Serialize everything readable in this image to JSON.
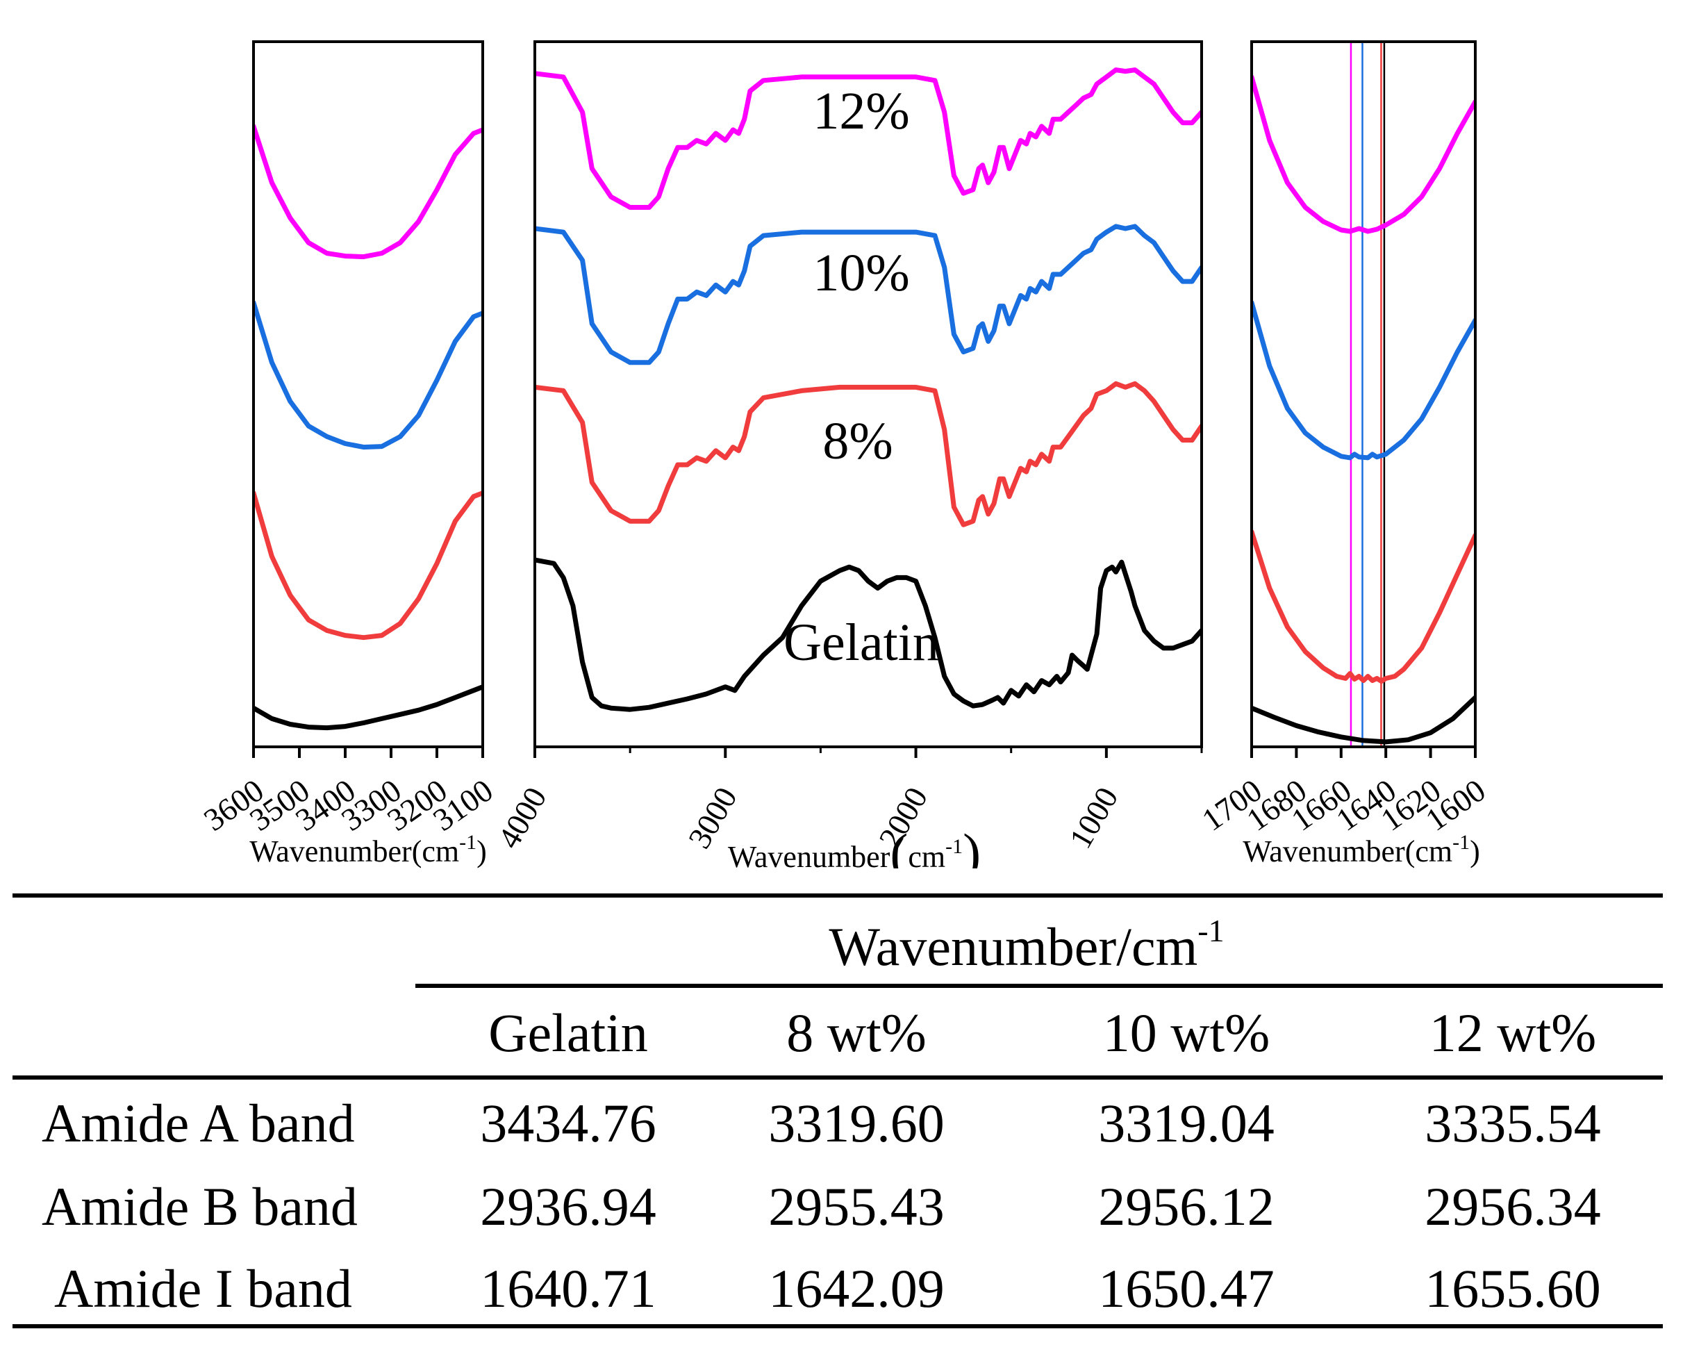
{
  "chart_data": [
    {
      "type": "line",
      "panel": "left",
      "xlabel": "Wavenumber(cm",
      "xlabel_sup": "-1",
      "xlabel_close": ")",
      "xlim": [
        3600,
        3100
      ],
      "x_ticks": [
        3600,
        3500,
        3400,
        3300,
        3200,
        3100
      ],
      "x_tick_labels": [
        "3600",
        "3500",
        "3400",
        "3300",
        "3200",
        "3100"
      ],
      "y_axis_visible": false,
      "series": [
        {
          "name": "12%",
          "color": "#ff00ff",
          "x": [
            3600,
            3560,
            3520,
            3480,
            3440,
            3400,
            3360,
            3320,
            3280,
            3240,
            3200,
            3160,
            3120,
            3100
          ],
          "y": [
            0.88,
            0.8,
            0.75,
            0.715,
            0.7,
            0.696,
            0.695,
            0.7,
            0.715,
            0.745,
            0.79,
            0.84,
            0.87,
            0.875
          ]
        },
        {
          "name": "10%",
          "color": "#1a6fe0",
          "x": [
            3600,
            3560,
            3520,
            3480,
            3440,
            3400,
            3360,
            3320,
            3280,
            3240,
            3200,
            3160,
            3120,
            3100
          ],
          "y": [
            0.63,
            0.545,
            0.49,
            0.455,
            0.44,
            0.43,
            0.425,
            0.426,
            0.44,
            0.47,
            0.52,
            0.575,
            0.61,
            0.615
          ]
        },
        {
          "name": "8%",
          "color": "#f03c3c",
          "x": [
            3600,
            3560,
            3520,
            3480,
            3440,
            3400,
            3360,
            3320,
            3280,
            3240,
            3200,
            3160,
            3120,
            3100
          ],
          "y": [
            0.36,
            0.27,
            0.215,
            0.18,
            0.165,
            0.158,
            0.155,
            0.158,
            0.175,
            0.21,
            0.26,
            0.32,
            0.355,
            0.36
          ]
        },
        {
          "name": "Gelatin",
          "color": "#000000",
          "x": [
            3600,
            3560,
            3520,
            3480,
            3440,
            3400,
            3360,
            3320,
            3280,
            3240,
            3200,
            3160,
            3120,
            3100
          ],
          "y": [
            0.055,
            0.04,
            0.032,
            0.028,
            0.027,
            0.029,
            0.034,
            0.04,
            0.046,
            0.052,
            0.06,
            0.07,
            0.08,
            0.085
          ]
        }
      ]
    },
    {
      "type": "line",
      "panel": "middle",
      "xlabel": "Wavenumber",
      "xlabel_unit": "cm",
      "xlabel_sup": "-1",
      "xlim": [
        4000,
        500
      ],
      "x_ticks": [
        4000,
        3000,
        2000,
        1000
      ],
      "x_tick_labels": [
        "4000",
        "3000",
        "2000",
        "1000"
      ],
      "y_axis_visible": false,
      "series": [
        {
          "name": "12%",
          "label": "12%",
          "color": "#ff00ff",
          "x": [
            4000,
            3850,
            3750,
            3700,
            3600,
            3500,
            3400,
            3350,
            3300,
            3250,
            3200,
            3150,
            3100,
            3050,
            3000,
            2960,
            2930,
            2900,
            2870,
            2800,
            2600,
            2400,
            2200,
            2000,
            1900,
            1850,
            1800,
            1750,
            1700,
            1670,
            1650,
            1620,
            1590,
            1560,
            1540,
            1510,
            1480,
            1450,
            1420,
            1400,
            1370,
            1340,
            1300,
            1280,
            1240,
            1200,
            1160,
            1120,
            1080,
            1050,
            1000,
            950,
            900,
            850,
            800,
            750,
            700,
            650,
            600,
            550,
            500
          ],
          "y": [
            0.955,
            0.95,
            0.9,
            0.82,
            0.78,
            0.765,
            0.765,
            0.78,
            0.82,
            0.85,
            0.85,
            0.86,
            0.855,
            0.87,
            0.86,
            0.875,
            0.87,
            0.89,
            0.93,
            0.945,
            0.95,
            0.95,
            0.95,
            0.95,
            0.945,
            0.9,
            0.81,
            0.785,
            0.79,
            0.82,
            0.825,
            0.8,
            0.815,
            0.85,
            0.85,
            0.82,
            0.84,
            0.86,
            0.855,
            0.87,
            0.865,
            0.88,
            0.87,
            0.89,
            0.89,
            0.9,
            0.91,
            0.92,
            0.925,
            0.94,
            0.95,
            0.96,
            0.958,
            0.96,
            0.95,
            0.94,
            0.92,
            0.9,
            0.885,
            0.885,
            0.9
          ]
        },
        {
          "name": "10%",
          "label": "10%",
          "color": "#1a6fe0",
          "x": [
            4000,
            3850,
            3750,
            3700,
            3600,
            3500,
            3400,
            3350,
            3300,
            3250,
            3200,
            3150,
            3100,
            3050,
            3000,
            2960,
            2930,
            2900,
            2870,
            2800,
            2600,
            2400,
            2200,
            2000,
            1900,
            1850,
            1800,
            1750,
            1700,
            1670,
            1650,
            1620,
            1590,
            1560,
            1540,
            1510,
            1480,
            1450,
            1420,
            1400,
            1370,
            1340,
            1300,
            1280,
            1240,
            1200,
            1160,
            1120,
            1080,
            1050,
            1000,
            950,
            900,
            850,
            800,
            750,
            700,
            650,
            600,
            550,
            500
          ],
          "y": [
            0.735,
            0.73,
            0.69,
            0.6,
            0.56,
            0.545,
            0.545,
            0.56,
            0.6,
            0.635,
            0.635,
            0.645,
            0.64,
            0.655,
            0.645,
            0.66,
            0.655,
            0.675,
            0.71,
            0.725,
            0.73,
            0.73,
            0.73,
            0.73,
            0.725,
            0.68,
            0.585,
            0.56,
            0.565,
            0.595,
            0.6,
            0.575,
            0.59,
            0.625,
            0.625,
            0.6,
            0.62,
            0.64,
            0.635,
            0.65,
            0.645,
            0.66,
            0.65,
            0.67,
            0.67,
            0.68,
            0.69,
            0.7,
            0.705,
            0.72,
            0.73,
            0.738,
            0.735,
            0.738,
            0.725,
            0.715,
            0.695,
            0.675,
            0.66,
            0.66,
            0.68
          ]
        },
        {
          "name": "8%",
          "label": "8%",
          "color": "#f03c3c",
          "x": [
            4000,
            3850,
            3750,
            3700,
            3600,
            3500,
            3400,
            3350,
            3300,
            3250,
            3200,
            3150,
            3100,
            3050,
            3000,
            2960,
            2930,
            2900,
            2870,
            2800,
            2600,
            2400,
            2200,
            2000,
            1900,
            1850,
            1800,
            1750,
            1700,
            1670,
            1650,
            1620,
            1590,
            1560,
            1540,
            1510,
            1480,
            1450,
            1420,
            1400,
            1370,
            1340,
            1300,
            1280,
            1240,
            1200,
            1160,
            1120,
            1080,
            1050,
            1000,
            950,
            900,
            850,
            800,
            750,
            700,
            650,
            600,
            550,
            500
          ],
          "y": [
            0.51,
            0.505,
            0.46,
            0.375,
            0.335,
            0.32,
            0.32,
            0.335,
            0.37,
            0.4,
            0.4,
            0.41,
            0.405,
            0.42,
            0.41,
            0.425,
            0.42,
            0.44,
            0.475,
            0.495,
            0.505,
            0.51,
            0.51,
            0.51,
            0.505,
            0.45,
            0.34,
            0.315,
            0.32,
            0.35,
            0.355,
            0.33,
            0.345,
            0.38,
            0.38,
            0.355,
            0.375,
            0.395,
            0.39,
            0.405,
            0.4,
            0.415,
            0.405,
            0.425,
            0.425,
            0.44,
            0.455,
            0.47,
            0.48,
            0.5,
            0.505,
            0.515,
            0.51,
            0.515,
            0.505,
            0.49,
            0.47,
            0.45,
            0.435,
            0.435,
            0.455
          ]
        },
        {
          "name": "Gelatin",
          "label": "Gelatin",
          "color": "#000000",
          "x": [
            4000,
            3900,
            3850,
            3800,
            3750,
            3700,
            3650,
            3600,
            3500,
            3400,
            3300,
            3200,
            3100,
            3000,
            2950,
            2900,
            2800,
            2700,
            2600,
            2500,
            2400,
            2350,
            2300,
            2250,
            2200,
            2150,
            2100,
            2050,
            2000,
            1950,
            1900,
            1850,
            1800,
            1750,
            1700,
            1650,
            1600,
            1570,
            1540,
            1500,
            1460,
            1420,
            1380,
            1340,
            1300,
            1260,
            1240,
            1200,
            1180,
            1150,
            1120,
            1100,
            1080,
            1050,
            1030,
            1000,
            970,
            950,
            920,
            900,
            870,
            850,
            800,
            750,
            700,
            650,
            600,
            550,
            500
          ],
          "y": [
            0.265,
            0.26,
            0.24,
            0.2,
            0.12,
            0.07,
            0.058,
            0.055,
            0.053,
            0.056,
            0.062,
            0.068,
            0.075,
            0.085,
            0.08,
            0.1,
            0.13,
            0.155,
            0.2,
            0.235,
            0.25,
            0.255,
            0.25,
            0.235,
            0.225,
            0.235,
            0.24,
            0.24,
            0.235,
            0.2,
            0.155,
            0.1,
            0.075,
            0.065,
            0.058,
            0.06,
            0.066,
            0.07,
            0.062,
            0.08,
            0.072,
            0.088,
            0.078,
            0.094,
            0.088,
            0.1,
            0.092,
            0.105,
            0.13,
            0.122,
            0.115,
            0.11,
            0.13,
            0.16,
            0.225,
            0.25,
            0.255,
            0.248,
            0.262,
            0.245,
            0.22,
            0.2,
            0.165,
            0.15,
            0.14,
            0.14,
            0.145,
            0.15,
            0.165
          ]
        }
      ]
    },
    {
      "type": "line",
      "panel": "right",
      "xlabel": "Wavenumber(cm",
      "xlabel_sup": "-1",
      "xlabel_close": ")",
      "xlim": [
        1700,
        1600
      ],
      "x_ticks": [
        1700,
        1680,
        1660,
        1640,
        1620,
        1600
      ],
      "x_tick_labels": [
        "1700",
        "1680",
        "1660",
        "1640",
        "1620",
        "1600"
      ],
      "y_axis_visible": false,
      "reference_lines": [
        {
          "x": 1655.6,
          "color": "#ff00ff"
        },
        {
          "x": 1650.47,
          "color": "#1a6fe0"
        },
        {
          "x": 1642.09,
          "color": "#f03c3c"
        },
        {
          "x": 1640.71,
          "color": "#000000"
        }
      ],
      "series": [
        {
          "name": "12%",
          "color": "#ff00ff",
          "x": [
            1700,
            1692,
            1684,
            1676,
            1668,
            1660,
            1656,
            1652,
            1648,
            1644,
            1640,
            1632,
            1624,
            1616,
            1608,
            1600
          ],
          "y": [
            0.95,
            0.86,
            0.8,
            0.765,
            0.745,
            0.733,
            0.731,
            0.735,
            0.731,
            0.734,
            0.74,
            0.755,
            0.78,
            0.82,
            0.87,
            0.915
          ]
        },
        {
          "name": "10%",
          "color": "#1a6fe0",
          "x": [
            1700,
            1692,
            1684,
            1676,
            1668,
            1660,
            1656,
            1654,
            1652,
            1648,
            1646,
            1644,
            1640,
            1632,
            1624,
            1616,
            1608,
            1600
          ],
          "y": [
            0.63,
            0.54,
            0.48,
            0.445,
            0.425,
            0.412,
            0.41,
            0.415,
            0.411,
            0.41,
            0.415,
            0.411,
            0.415,
            0.435,
            0.465,
            0.51,
            0.56,
            0.605
          ]
        },
        {
          "name": "8%",
          "color": "#f03c3c",
          "x": [
            1700,
            1692,
            1684,
            1676,
            1668,
            1662,
            1658,
            1656,
            1654,
            1652,
            1650,
            1648,
            1646,
            1644,
            1642,
            1640,
            1636,
            1632,
            1624,
            1616,
            1608,
            1600
          ],
          "y": [
            0.305,
            0.225,
            0.17,
            0.135,
            0.112,
            0.1,
            0.097,
            0.104,
            0.096,
            0.1,
            0.094,
            0.1,
            0.094,
            0.097,
            0.093,
            0.097,
            0.1,
            0.11,
            0.14,
            0.19,
            0.245,
            0.3
          ]
        },
        {
          "name": "Gelatin",
          "color": "#000000",
          "x": [
            1700,
            1690,
            1680,
            1670,
            1660,
            1650,
            1640,
            1630,
            1620,
            1610,
            1600
          ],
          "y": [
            0.055,
            0.042,
            0.03,
            0.021,
            0.014,
            0.009,
            0.007,
            0.01,
            0.02,
            0.04,
            0.07
          ]
        }
      ]
    }
  ],
  "table": {
    "group_header": "Wavenumber/cm",
    "group_header_sup": "-1",
    "columns": [
      "Gelatin",
      "8 wt%",
      "10 wt%",
      "12 wt%"
    ],
    "rows": [
      {
        "label": "Amide A band",
        "values": [
          "3434.76",
          "3319.60",
          "3319.04",
          "3335.54"
        ]
      },
      {
        "label": "Amide B band",
        "values": [
          "2936.94",
          "2955.43",
          "2956.12",
          "2956.34"
        ]
      },
      {
        "label": "Amide I band",
        "values": [
          "1640.71",
          "1642.09",
          "1650.47",
          "1655.60"
        ]
      }
    ]
  }
}
